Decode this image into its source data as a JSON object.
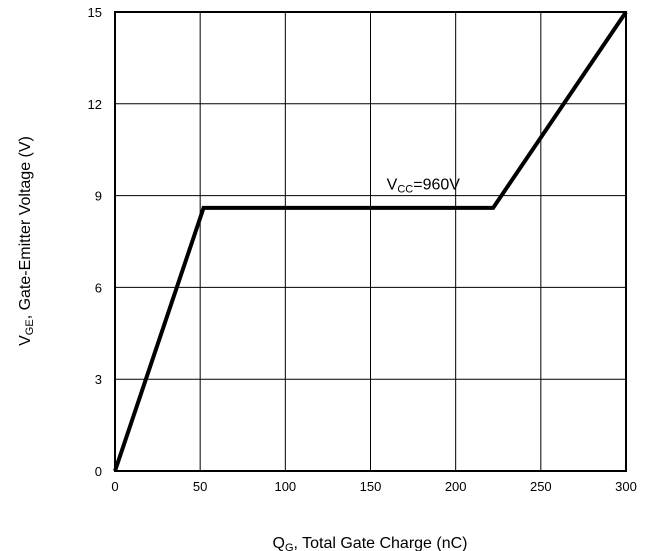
{
  "chart_data": {
    "type": "line",
    "title": "",
    "xlabel": {
      "main": "Q",
      "sub": "G",
      "rest": ", Total Gate Charge (nC)"
    },
    "ylabel": {
      "main": "V",
      "sub": "GE",
      "rest": ", Gate-Emitter Voltage (V)"
    },
    "xlim": [
      0,
      300
    ],
    "ylim": [
      0,
      15
    ],
    "xticks": [
      0,
      50,
      100,
      150,
      200,
      250,
      300
    ],
    "yticks": [
      0,
      3,
      6,
      9,
      12,
      15
    ],
    "grid": true,
    "series": [
      {
        "x": [
          0,
          52,
          222,
          300
        ],
        "y": [
          0,
          8.6,
          8.6,
          15
        ]
      }
    ],
    "annotation": {
      "main": "V",
      "sub": "CC",
      "rest": "=960V",
      "x": 181,
      "y": 9.2
    }
  }
}
